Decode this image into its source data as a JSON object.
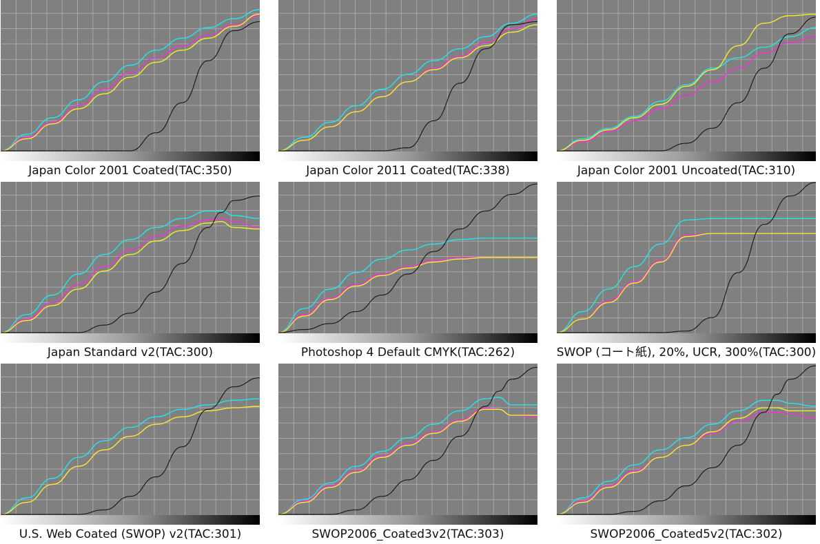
{
  "figure": {
    "x_range": [
      0,
      100
    ],
    "y_range": [
      0,
      100
    ],
    "grid": true,
    "background_color": "#808080",
    "grid_color": "#a9a9a9",
    "series_colors": {
      "cyan": "#22e6ee",
      "magenta": "#ff2ad8",
      "yellow": "#f4ef2a",
      "black": "#111111"
    }
  },
  "chart_data": [
    {
      "type": "line",
      "title": "Japan Color 2001 Coated(TAC:350)",
      "x": [
        0,
        10,
        20,
        30,
        40,
        50,
        60,
        70,
        80,
        90,
        100
      ],
      "series": [
        {
          "color": "cyan",
          "values": [
            0,
            11,
            22,
            34,
            46,
            57,
            67,
            75,
            82,
            88,
            94
          ]
        },
        {
          "color": "magenta",
          "values": [
            0,
            9,
            19,
            30,
            41,
            52,
            62,
            70,
            77,
            84,
            90
          ]
        },
        {
          "color": "yellow",
          "values": [
            0,
            8,
            18,
            28,
            38,
            49,
            59,
            67,
            75,
            83,
            91
          ]
        },
        {
          "color": "black",
          "values": [
            0,
            0,
            0,
            0,
            0,
            0,
            12,
            32,
            60,
            80,
            86
          ]
        }
      ]
    },
    {
      "type": "line",
      "title": "Japan Color 2011 Coated(TAC:338)",
      "x": [
        0,
        10,
        20,
        30,
        40,
        50,
        60,
        70,
        80,
        90,
        100
      ],
      "series": [
        {
          "color": "cyan",
          "values": [
            0,
            9,
            19,
            30,
            41,
            51,
            60,
            68,
            76,
            85,
            91
          ]
        },
        {
          "color": "magenta",
          "values": [
            0,
            7,
            16,
            26,
            36,
            46,
            55,
            63,
            72,
            81,
            88
          ]
        },
        {
          "color": "yellow",
          "values": [
            0,
            7,
            16,
            26,
            36,
            46,
            54,
            62,
            70,
            79,
            84
          ]
        },
        {
          "color": "black",
          "values": [
            0,
            0,
            0,
            0,
            0,
            2,
            20,
            45,
            68,
            84,
            86
          ]
        }
      ]
    },
    {
      "type": "line",
      "title": "Japan Color 2001 Uncoated(TAC:310)",
      "x": [
        0,
        10,
        20,
        30,
        40,
        50,
        60,
        70,
        80,
        90,
        100
      ],
      "series": [
        {
          "color": "cyan",
          "values": [
            0,
            8,
            15,
            23,
            33,
            44,
            55,
            62,
            69,
            76,
            82
          ]
        },
        {
          "color": "magenta",
          "values": [
            0,
            6,
            13,
            20,
            28,
            37,
            46,
            55,
            65,
            72,
            76
          ]
        },
        {
          "color": "yellow",
          "values": [
            0,
            7,
            14,
            22,
            31,
            43,
            54,
            70,
            85,
            90,
            91
          ]
        },
        {
          "color": "black",
          "values": [
            0,
            0,
            0,
            0,
            0,
            5,
            15,
            32,
            55,
            78,
            89
          ]
        }
      ]
    },
    {
      "type": "line",
      "title": "Japan Standard v2(TAC:300)",
      "x": [
        0,
        10,
        20,
        30,
        40,
        50,
        60,
        70,
        80,
        85,
        90,
        100
      ],
      "series": [
        {
          "color": "cyan",
          "values": [
            0,
            12,
            25,
            39,
            52,
            62,
            70,
            76,
            81,
            81,
            78,
            76
          ]
        },
        {
          "color": "magenta",
          "values": [
            0,
            9,
            20,
            32,
            44,
            55,
            64,
            71,
            75,
            76,
            74,
            70
          ]
        },
        {
          "color": "yellow",
          "values": [
            0,
            8,
            18,
            29,
            41,
            52,
            61,
            68,
            73,
            74,
            70,
            69
          ]
        },
        {
          "color": "black",
          "values": [
            0,
            0,
            0,
            0,
            5,
            13,
            27,
            46,
            70,
            80,
            88,
            91
          ]
        }
      ]
    },
    {
      "type": "line",
      "title": "Photoshop 4 Default CMYK(TAC:262)",
      "x": [
        0,
        10,
        20,
        30,
        40,
        50,
        60,
        70,
        80,
        90,
        100
      ],
      "series": [
        {
          "color": "cyan",
          "values": [
            0,
            16,
            29,
            40,
            49,
            55,
            59,
            62,
            63,
            63,
            63
          ]
        },
        {
          "color": "magenta",
          "values": [
            0,
            12,
            23,
            32,
            39,
            44,
            48,
            50,
            50,
            50,
            50
          ]
        },
        {
          "color": "yellow",
          "values": [
            0,
            11,
            22,
            31,
            38,
            43,
            47,
            49,
            50,
            50,
            50
          ]
        },
        {
          "color": "black",
          "values": [
            0,
            2,
            6,
            14,
            25,
            39,
            54,
            69,
            81,
            92,
            99
          ]
        }
      ]
    },
    {
      "type": "line",
      "title": "SWOP (コート紙), 20%, UCR, 300%(TAC:300)",
      "x": [
        0,
        10,
        20,
        30,
        40,
        50,
        60,
        70,
        80,
        90,
        100
      ],
      "series": [
        {
          "color": "cyan",
          "values": [
            0,
            14,
            29,
            44,
            59,
            75,
            76,
            76,
            76,
            76,
            76
          ]
        },
        {
          "color": "magenta",
          "values": [
            0,
            9,
            21,
            34,
            48,
            65,
            66,
            66,
            66,
            66,
            66
          ]
        },
        {
          "color": "yellow",
          "values": [
            0,
            9,
            20,
            33,
            47,
            64,
            66,
            66,
            66,
            66,
            66
          ]
        },
        {
          "color": "black",
          "values": [
            0,
            0,
            0,
            0,
            0,
            1,
            10,
            40,
            72,
            91,
            100
          ]
        }
      ]
    },
    {
      "type": "line",
      "title": "U.S. Web Coated (SWOP) v2(TAC:301)",
      "x": [
        0,
        10,
        20,
        30,
        40,
        50,
        60,
        70,
        80,
        90,
        100
      ],
      "series": [
        {
          "color": "cyan",
          "values": [
            0,
            11,
            24,
            38,
            49,
            58,
            65,
            70,
            73,
            76,
            77
          ]
        },
        {
          "color": "magenta",
          "values": [
            0,
            8,
            20,
            32,
            43,
            52,
            60,
            65,
            69,
            71,
            72
          ]
        },
        {
          "color": "yellow",
          "values": [
            0,
            8,
            20,
            32,
            43,
            52,
            60,
            65,
            69,
            71,
            72
          ]
        },
        {
          "color": "black",
          "values": [
            0,
            0,
            0,
            0,
            3,
            12,
            25,
            45,
            70,
            85,
            91
          ]
        }
      ]
    },
    {
      "type": "line",
      "title": "SWOP2006_Coated3v2(TAC:303)",
      "x": [
        0,
        10,
        20,
        30,
        40,
        50,
        60,
        70,
        80,
        85,
        90,
        100
      ],
      "series": [
        {
          "color": "cyan",
          "values": [
            0,
            10,
            21,
            32,
            42,
            51,
            60,
            69,
            77,
            78,
            73,
            73
          ]
        },
        {
          "color": "magenta",
          "values": [
            0,
            9,
            19,
            29,
            39,
            47,
            55,
            63,
            71,
            70,
            66,
            65
          ]
        },
        {
          "color": "yellow",
          "values": [
            0,
            8,
            18,
            28,
            38,
            46,
            54,
            62,
            70,
            70,
            66,
            66
          ]
        },
        {
          "color": "black",
          "values": [
            0,
            0,
            0,
            3,
            12,
            23,
            36,
            52,
            72,
            82,
            90,
            98
          ]
        }
      ]
    },
    {
      "type": "line",
      "title": "SWOP2006_Coated5v2(TAC:302)",
      "x": [
        0,
        10,
        20,
        30,
        40,
        50,
        60,
        70,
        80,
        85,
        90,
        100
      ],
      "series": [
        {
          "color": "cyan",
          "values": [
            0,
            11,
            22,
            33,
            43,
            51,
            60,
            69,
            76,
            76,
            74,
            72
          ]
        },
        {
          "color": "magenta",
          "values": [
            0,
            9,
            19,
            29,
            38,
            46,
            54,
            62,
            68,
            68,
            67,
            64
          ]
        },
        {
          "color": "yellow",
          "values": [
            0,
            8,
            18,
            28,
            38,
            46,
            55,
            64,
            71,
            71,
            69,
            69
          ]
        },
        {
          "color": "black",
          "values": [
            0,
            0,
            0,
            2,
            9,
            19,
            31,
            46,
            68,
            80,
            90,
            99
          ]
        }
      ]
    }
  ]
}
